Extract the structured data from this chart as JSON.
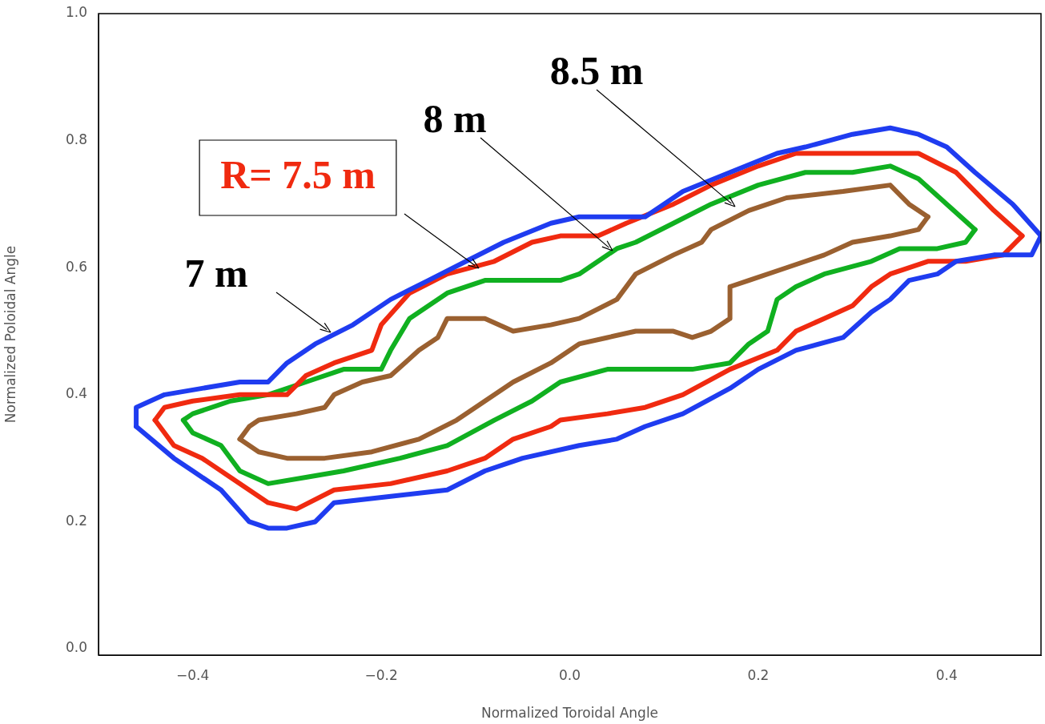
{
  "chart_data": {
    "type": "line",
    "xlabel": "Normalized Toroidal Angle",
    "ylabel": "Normalized Poloidal Angle",
    "xlim": [
      -0.5,
      0.5
    ],
    "ylim": [
      -0.01,
      1.0
    ],
    "xticks": [
      {
        "value": -0.4,
        "label": "−0.4"
      },
      {
        "value": -0.2,
        "label": "−0.2"
      },
      {
        "value": 0,
        "label": "0.0"
      },
      {
        "value": 0.2,
        "label": "0.2"
      },
      {
        "value": 0.4,
        "label": "0.4"
      }
    ],
    "yticks": [
      {
        "value": 0,
        "label": "0.0"
      },
      {
        "value": 0.2,
        "label": "0.2"
      },
      {
        "value": 0.4,
        "label": "0.4"
      },
      {
        "value": 0.6,
        "label": "0.6"
      },
      {
        "value": 0.8,
        "label": "0.8"
      },
      {
        "value": 1.0,
        "label": "1.0"
      }
    ],
    "grid": false,
    "legend": false,
    "marker": "none",
    "line_style": "solid",
    "series": [
      {
        "name": "7 m",
        "color": "#1f3cf0",
        "x": [
          -0.46,
          -0.46,
          -0.43,
          -0.39,
          -0.35,
          -0.32,
          -0.3,
          -0.27,
          -0.23,
          -0.19,
          -0.15,
          -0.11,
          -0.07,
          -0.02,
          0.01,
          0.05,
          0.08,
          0.12,
          0.17,
          0.22,
          0.25,
          0.3,
          0.34,
          0.37,
          0.4,
          0.43,
          0.47,
          0.5
        ],
        "values": [
          0.35,
          0.38,
          0.4,
          0.41,
          0.42,
          0.42,
          0.45,
          0.48,
          0.51,
          0.55,
          0.58,
          0.61,
          0.64,
          0.67,
          0.68,
          0.68,
          0.68,
          0.72,
          0.75,
          0.78,
          0.79,
          0.81,
          0.82,
          0.81,
          0.79,
          0.75,
          0.7,
          0.65
        ]
      },
      {
        "color": "#1f3cf0",
        "x": [
          0.5,
          0.49,
          0.45,
          0.41,
          0.39,
          0.36,
          0.34,
          0.32,
          0.29,
          0.24,
          0.2,
          0.17,
          0.12,
          0.08,
          0.05,
          0.01,
          -0.05,
          -0.09,
          -0.13,
          -0.19,
          -0.25,
          -0.27,
          -0.3,
          -0.32,
          -0.34,
          -0.37,
          -0.4,
          -0.42,
          -0.46
        ],
        "values": [
          0.65,
          0.62,
          0.62,
          0.61,
          0.59,
          0.58,
          0.55,
          0.53,
          0.49,
          0.47,
          0.44,
          0.41,
          0.37,
          0.35,
          0.33,
          0.32,
          0.3,
          0.28,
          0.25,
          0.24,
          0.23,
          0.2,
          0.19,
          0.19,
          0.2,
          0.25,
          0.28,
          0.3,
          0.35
        ]
      },
      {
        "name": "R= 7.5 m",
        "color": "#f02a10",
        "x": [
          -0.44,
          -0.43,
          -0.4,
          -0.35,
          -0.3,
          -0.28,
          -0.25,
          -0.21,
          -0.2,
          -0.17,
          -0.13,
          -0.08,
          -0.04,
          -0.01,
          0.03,
          0.06,
          0.11,
          0.15,
          0.2,
          0.24,
          0.29,
          0.34,
          0.37,
          0.41,
          0.45,
          0.48
        ],
        "values": [
          0.36,
          0.38,
          0.39,
          0.4,
          0.4,
          0.43,
          0.45,
          0.47,
          0.51,
          0.56,
          0.59,
          0.61,
          0.64,
          0.65,
          0.65,
          0.67,
          0.7,
          0.73,
          0.76,
          0.78,
          0.78,
          0.78,
          0.78,
          0.75,
          0.69,
          0.65
        ]
      },
      {
        "color": "#f02a10",
        "x": [
          0.48,
          0.46,
          0.42,
          0.38,
          0.34,
          0.32,
          0.3,
          0.27,
          0.24,
          0.22,
          0.17,
          0.12,
          0.08,
          0.04,
          -0.01,
          -0.02,
          -0.06,
          -0.09,
          -0.13,
          -0.19,
          -0.25,
          -0.29,
          -0.32,
          -0.36,
          -0.39,
          -0.42,
          -0.44
        ],
        "values": [
          0.65,
          0.62,
          0.61,
          0.61,
          0.59,
          0.57,
          0.54,
          0.52,
          0.5,
          0.47,
          0.44,
          0.4,
          0.38,
          0.37,
          0.36,
          0.35,
          0.33,
          0.3,
          0.28,
          0.26,
          0.25,
          0.22,
          0.23,
          0.27,
          0.3,
          0.32,
          0.36
        ]
      },
      {
        "name": "8 m",
        "color": "#10b020",
        "x": [
          -0.41,
          -0.4,
          -0.36,
          -0.32,
          -0.28,
          -0.24,
          -0.2,
          -0.19,
          -0.17,
          -0.13,
          -0.09,
          -0.05,
          -0.01,
          0.01,
          0.05,
          0.07,
          0.11,
          0.15,
          0.2,
          0.25,
          0.3,
          0.34,
          0.37,
          0.4,
          0.43
        ],
        "values": [
          0.36,
          0.37,
          0.39,
          0.4,
          0.42,
          0.44,
          0.44,
          0.47,
          0.52,
          0.56,
          0.58,
          0.58,
          0.58,
          0.59,
          0.63,
          0.64,
          0.67,
          0.7,
          0.73,
          0.75,
          0.75,
          0.76,
          0.74,
          0.7,
          0.66
        ]
      },
      {
        "color": "#10b020",
        "x": [
          0.43,
          0.42,
          0.39,
          0.35,
          0.32,
          0.27,
          0.24,
          0.22,
          0.21,
          0.19,
          0.17,
          0.13,
          0.08,
          0.04,
          -0.01,
          -0.04,
          -0.08,
          -0.13,
          -0.18,
          -0.24,
          -0.28,
          -0.32,
          -0.35,
          -0.37,
          -0.4,
          -0.41
        ],
        "values": [
          0.66,
          0.64,
          0.63,
          0.63,
          0.61,
          0.59,
          0.57,
          0.55,
          0.5,
          0.48,
          0.45,
          0.44,
          0.44,
          0.44,
          0.42,
          0.39,
          0.36,
          0.32,
          0.3,
          0.28,
          0.27,
          0.26,
          0.28,
          0.32,
          0.34,
          0.36
        ]
      },
      {
        "name": "8.5 m",
        "color": "#9a6030",
        "x": [
          -0.35,
          -0.34,
          -0.33,
          -0.29,
          -0.26,
          -0.25,
          -0.22,
          -0.19,
          -0.16,
          -0.14,
          -0.13,
          -0.09,
          -0.06,
          -0.02,
          0.01,
          0.05,
          0.07,
          0.11,
          0.14,
          0.15,
          0.19,
          0.23,
          0.29,
          0.34,
          0.36,
          0.38
        ],
        "values": [
          0.33,
          0.35,
          0.36,
          0.37,
          0.38,
          0.4,
          0.42,
          0.43,
          0.47,
          0.49,
          0.52,
          0.52,
          0.5,
          0.51,
          0.52,
          0.55,
          0.59,
          0.62,
          0.64,
          0.66,
          0.69,
          0.71,
          0.72,
          0.73,
          0.7,
          0.68
        ]
      },
      {
        "color": "#9a6030",
        "x": [
          0.38,
          0.37,
          0.34,
          0.3,
          0.27,
          0.23,
          0.19,
          0.17,
          0.17,
          0.15,
          0.13,
          0.11,
          0.07,
          0.04,
          0.01,
          -0.02,
          -0.06,
          -0.09,
          -0.12,
          -0.16,
          -0.21,
          -0.26,
          -0.3,
          -0.33,
          -0.34,
          -0.35
        ],
        "values": [
          0.68,
          0.66,
          0.65,
          0.64,
          0.62,
          0.6,
          0.58,
          0.57,
          0.52,
          0.5,
          0.49,
          0.5,
          0.5,
          0.49,
          0.48,
          0.45,
          0.42,
          0.39,
          0.36,
          0.33,
          0.31,
          0.3,
          0.3,
          0.31,
          0.32,
          0.33
        ]
      }
    ]
  }
}
